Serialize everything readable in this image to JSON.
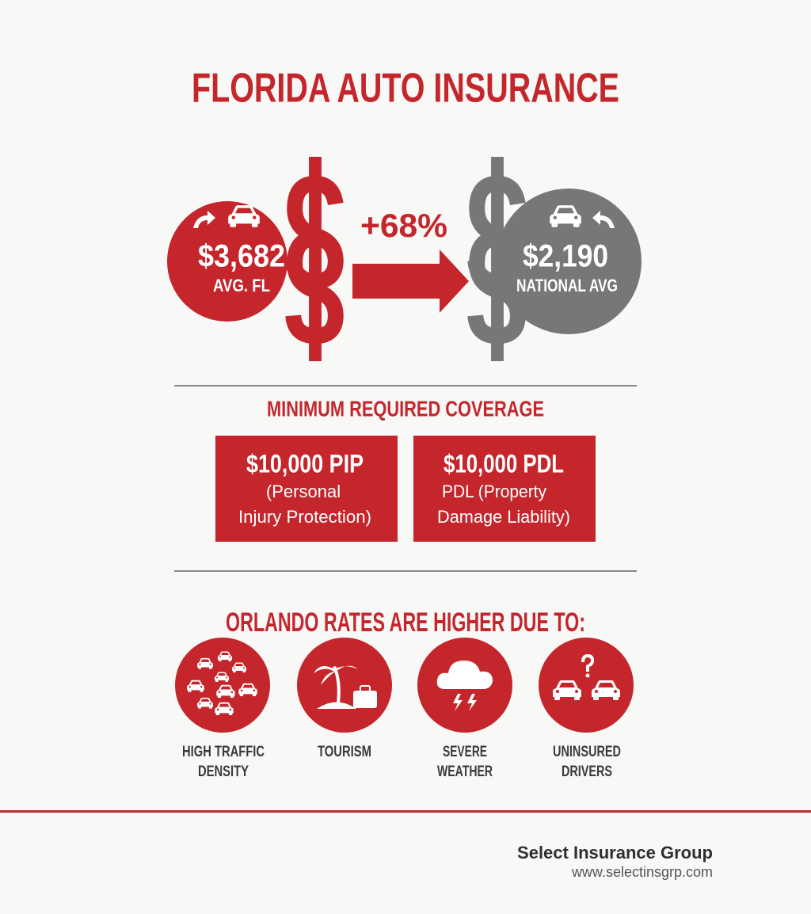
{
  "header": {
    "title": "FLORIDA AUTO INSURANCE"
  },
  "comparison": {
    "florida": {
      "amount": "$3,682",
      "label": "AVG. FL"
    },
    "difference": "+68%",
    "national": {
      "amount": "$2,190",
      "label": "NATIONAL AVG"
    }
  },
  "coverage": {
    "heading": "MINIMUM REQUIRED COVERAGE",
    "items": [
      {
        "amount": "$10,000 PIP",
        "description": [
          "(Personal",
          "Injury Protection)"
        ]
      },
      {
        "amount": "$10,000 PDL",
        "description": [
          "PDL (Property",
          "Damage Liability)"
        ]
      }
    ]
  },
  "factors": {
    "heading": "ORLANDO RATES ARE HIGHER DUE TO:",
    "items": [
      {
        "label": [
          "HIGH TRAFFIC",
          "DENSITY"
        ]
      },
      {
        "label": [
          "TOURISM"
        ]
      },
      {
        "label": [
          "SEVERE",
          "WEATHER"
        ]
      },
      {
        "label": [
          "UNINSURED",
          "DRIVERS"
        ]
      }
    ]
  },
  "footer": {
    "company": "Select Insurance Group",
    "website": "www.selectinsgrp.com"
  }
}
